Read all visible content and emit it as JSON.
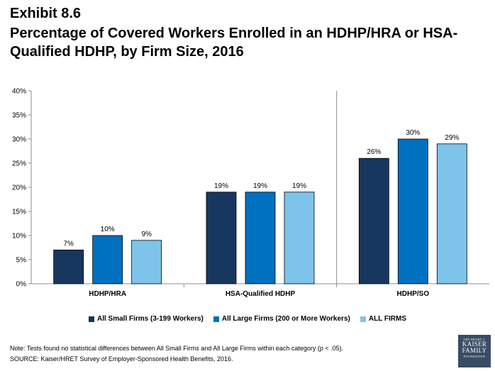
{
  "exhibit": "Exhibit 8.6",
  "title": "Percentage of Covered Workers Enrolled in an HDHP/HRA or HSA-Qualified HDHP, by Firm Size, 2016",
  "note": "Note: Tests found no statistical differences between All Small Firms and All Large Firms within each category (p < .05).",
  "source": "SOURCE:  Kaiser/HRET Survey of Employer-Sponsored Health Benefits, 2016.",
  "logo": {
    "line1": "THE HENRY J.",
    "line2": "KAISER",
    "line3": "FAMILY",
    "line4": "FOUNDATION"
  },
  "chart_data": {
    "type": "bar",
    "categories": [
      "HDHP/HRA",
      "HSA-Qualified HDHP",
      "HDHP/SO"
    ],
    "series": [
      {
        "name": "All Small Firms (3-199 Workers)",
        "values": [
          7,
          19,
          26
        ],
        "labels": [
          "7%",
          "19%",
          "26%"
        ],
        "color": "#17375e"
      },
      {
        "name": "All Large Firms (200 or More Workers)",
        "values": [
          10,
          19,
          30
        ],
        "labels": [
          "10%",
          "19%",
          "30%"
        ],
        "color": "#0070c0"
      },
      {
        "name": "ALL FIRMS",
        "values": [
          9,
          19,
          29
        ],
        "labels": [
          "9%",
          "19%",
          "29%"
        ],
        "color": "#7dc3ea"
      }
    ],
    "ylim": [
      0,
      40
    ],
    "yticks": [
      0,
      5,
      10,
      15,
      20,
      25,
      30,
      35,
      40
    ],
    "ytick_labels": [
      "0%",
      "5%",
      "10%",
      "15%",
      "20%",
      "25%",
      "30%",
      "35%",
      "40%"
    ],
    "legend_position": "bottom",
    "grid": false
  }
}
